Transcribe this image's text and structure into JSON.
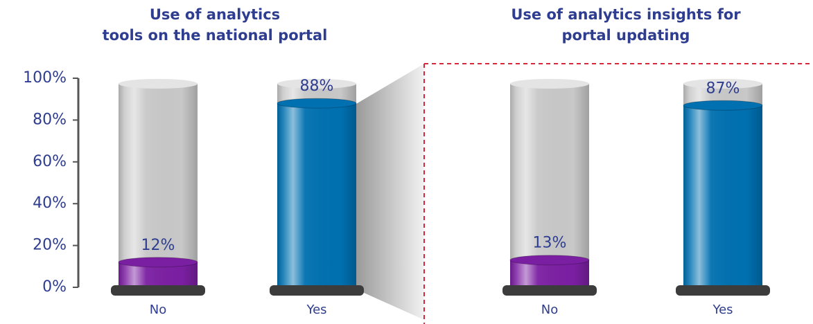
{
  "chart_data": [
    {
      "type": "bar",
      "title": "Use of analytics\ntools on the national portal",
      "categories": [
        "No",
        "Yes"
      ],
      "values": [
        12,
        88
      ],
      "value_labels": [
        "12%",
        "88%"
      ],
      "colors": [
        "#7b1fa2",
        "#0070b0"
      ],
      "ylim": [
        0,
        100
      ],
      "yticks": [
        {
          "value": 0,
          "label": "0%"
        },
        {
          "value": 20,
          "label": "20%"
        },
        {
          "value": 40,
          "label": "40%"
        },
        {
          "value": 60,
          "label": "60%"
        },
        {
          "value": 80,
          "label": "80%"
        },
        {
          "value": 100,
          "label": "100%"
        }
      ]
    },
    {
      "type": "bar",
      "title": "Use of analytics insights for\nportal updating",
      "categories": [
        "No",
        "Yes"
      ],
      "values": [
        13,
        87
      ],
      "value_labels": [
        "13%",
        "87%"
      ],
      "colors": [
        "#7b1fa2",
        "#0070b0"
      ],
      "ylim": [
        0,
        100
      ]
    }
  ]
}
